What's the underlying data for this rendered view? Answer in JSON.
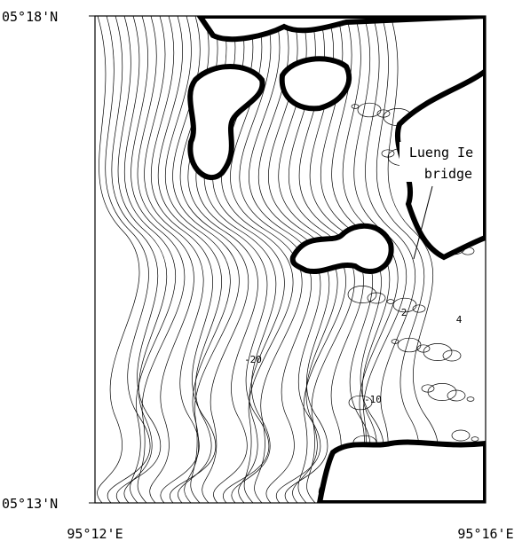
{
  "map": {
    "lat_labels": [
      "05°18'N",
      "05°13'N"
    ],
    "lon_labels": [
      "95°12'E",
      "95°16'E"
    ],
    "contour_labels": [
      "-20",
      "-10",
      "2",
      "4"
    ],
    "annotation": [
      "Lueng Ie",
      "bridge"
    ]
  }
}
